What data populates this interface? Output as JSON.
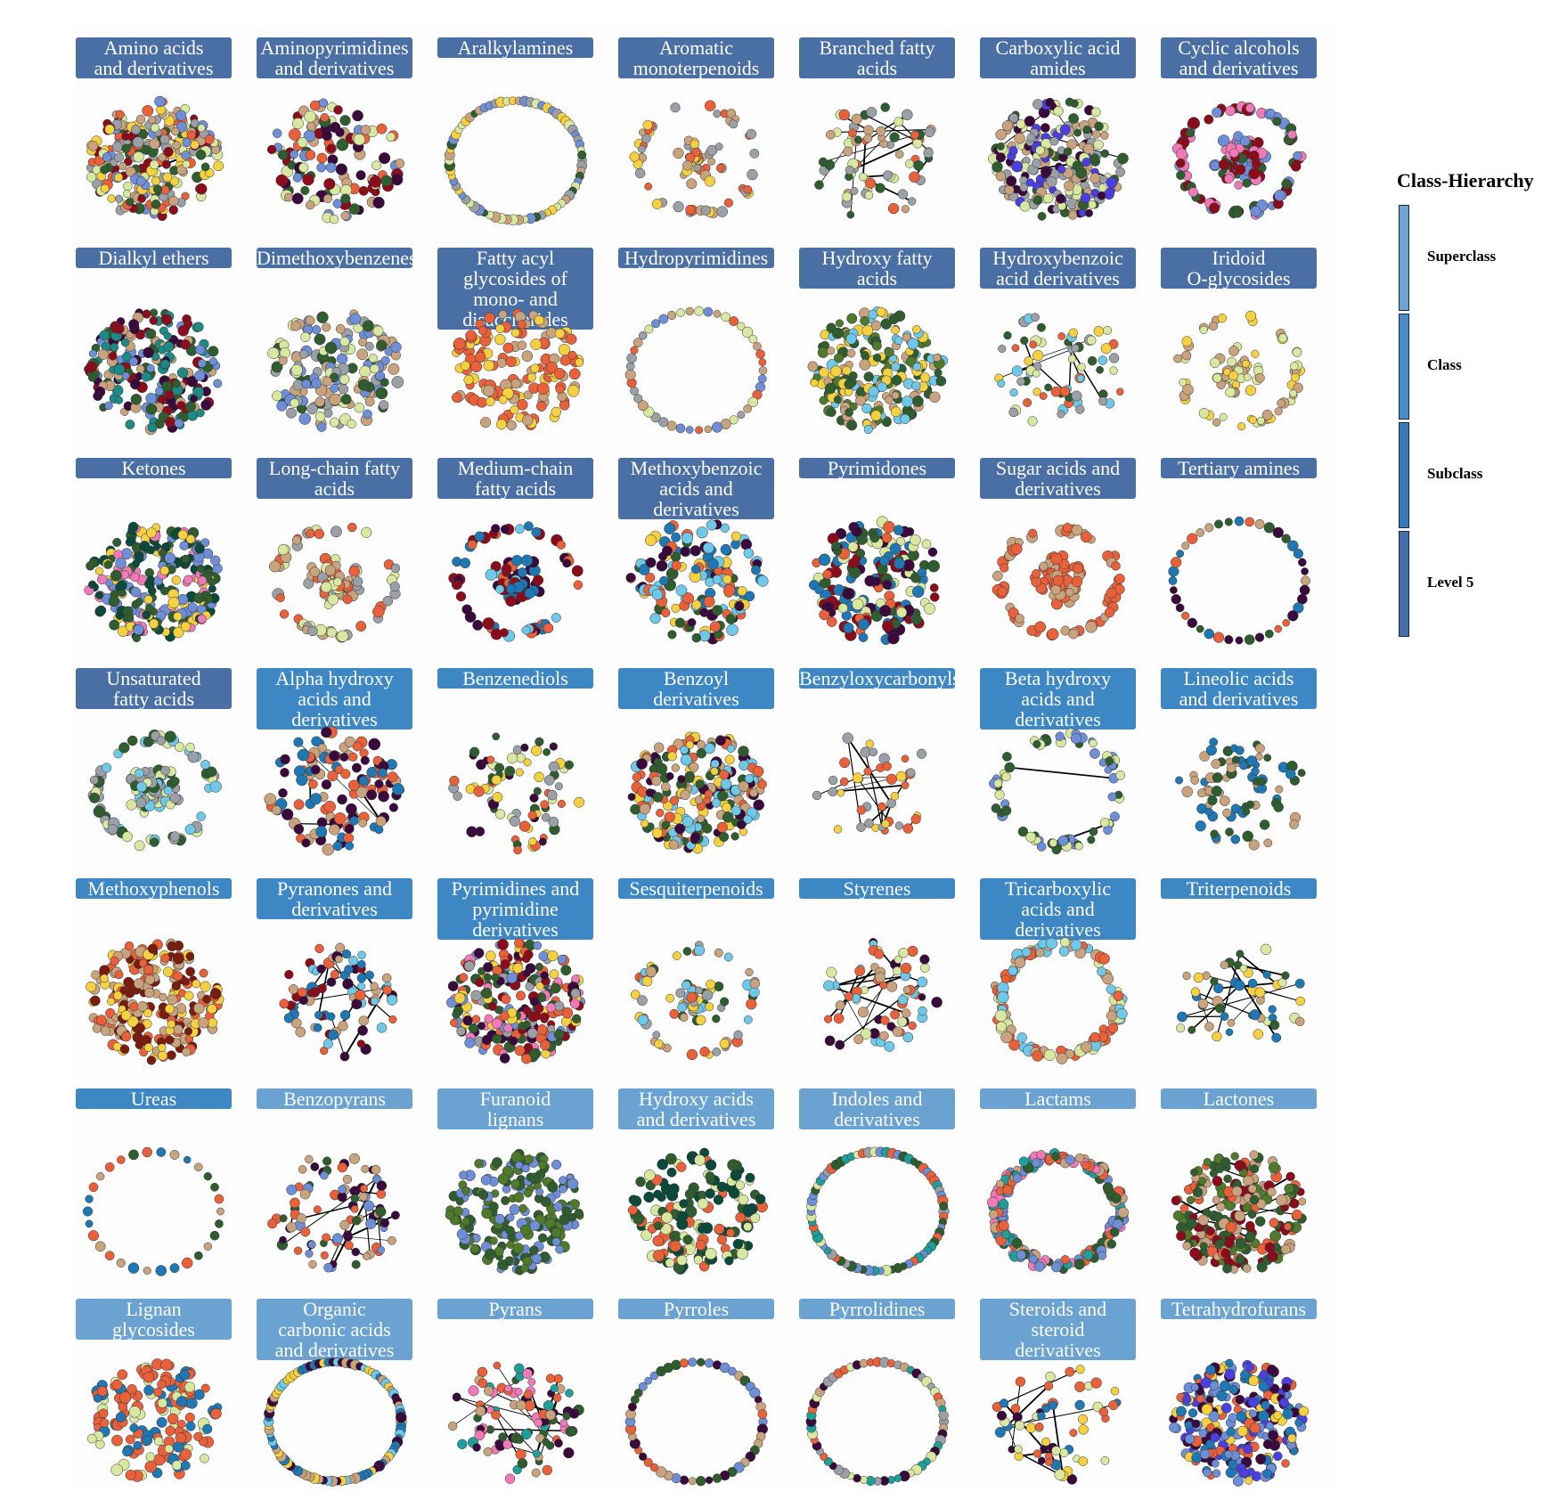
{
  "legend": {
    "title": "Class-Hierarchy",
    "levels": [
      {
        "label": "Superclass",
        "color": "#6fa3d0"
      },
      {
        "label": "Class",
        "color": "#4a8cc7"
      },
      {
        "label": "Subclass",
        "color": "#3a78b8"
      },
      {
        "label": "Level 5",
        "color": "#456fa8"
      }
    ]
  },
  "header_colors": {
    "row0": "#4a6fa5",
    "row3a": "#4a6fa5",
    "row3b": "#3d87c4",
    "row5a": "#3d87c4",
    "row5b": "#6aa2d2"
  },
  "panels": [
    {
      "title": [
        "Amino acids",
        "and derivatives"
      ],
      "layout": "disc",
      "palette": [
        "#e8613b",
        "#9aa0a6",
        "#f5d142",
        "#c9a27e",
        "#d9e8a0",
        "#2f5d2f",
        "#6e8fd8",
        "#8b0d1c"
      ],
      "nodes": 260,
      "edges": 2
    },
    {
      "title": [
        "Aminopyrimidines",
        "and derivatives"
      ],
      "layout": "disc",
      "palette": [
        "#2f5d2f",
        "#e8613b",
        "#8b0d1c",
        "#3b0a3d",
        "#c9a27e",
        "#6e8fd8",
        "#d9e8a0"
      ],
      "nodes": 120,
      "edges": 1
    },
    {
      "title": [
        "Aralkylamines"
      ],
      "layout": "ring",
      "palette": [
        "#6e8fd8",
        "#d9e8a0",
        "#2f5d2f",
        "#9aa0a6",
        "#c9a27e",
        "#f5d142"
      ],
      "nodes": 70,
      "edges": 0
    },
    {
      "title": [
        "Aromatic",
        "monoterpenoids"
      ],
      "layout": "cluster",
      "palette": [
        "#e8613b",
        "#9aa0a6",
        "#c9a27e",
        "#f5d142"
      ],
      "nodes": 80,
      "edges": 0
    },
    {
      "title": [
        "Branched fatty",
        "acids"
      ],
      "layout": "islands",
      "palette": [
        "#e8613b",
        "#2f5d2f",
        "#9aa0a6",
        "#c9a27e",
        "#d9e8a0"
      ],
      "nodes": 70,
      "edges": 14
    },
    {
      "title": [
        "Carboxylic acid",
        "amides"
      ],
      "layout": "disc",
      "palette": [
        "#4b3fe0",
        "#2f5d2f",
        "#9aa0a6",
        "#d9e8a0",
        "#c9a27e",
        "#3b0a3d"
      ],
      "nodes": 230,
      "edges": 5
    },
    {
      "title": [
        "Cyclic alcohols",
        "and derivatives"
      ],
      "layout": "cluster",
      "palette": [
        "#f07ab8",
        "#2f5d2f",
        "#8b0d1c",
        "#6e8fd8"
      ],
      "nodes": 180,
      "edges": 0
    },
    {
      "title": [
        "Dialkyl ethers"
      ],
      "layout": "disc",
      "palette": [
        "#1e8a86",
        "#6e8fd8",
        "#3b0a3d",
        "#8b0d1c",
        "#c9a27e",
        "#2f5d2f"
      ],
      "nodes": 230,
      "edges": 0
    },
    {
      "title": [
        "Dimethoxybenzenes"
      ],
      "layout": "disc",
      "palette": [
        "#2f5d2f",
        "#6e8fd8",
        "#d9e8a0",
        "#c9a27e",
        "#9aa0a6"
      ],
      "nodes": 170,
      "edges": 0
    },
    {
      "title": [
        "Fatty acyl",
        "glycosides of",
        "mono- and",
        "disaccharides"
      ],
      "layout": "disc",
      "palette": [
        "#e8613b",
        "#e8613b",
        "#f5d142",
        "#c9a27e"
      ],
      "nodes": 150,
      "edges": 0
    },
    {
      "title": [
        "Hydropyrimidines"
      ],
      "layout": "ring",
      "palette": [
        "#e8613b",
        "#c9a27e",
        "#6e8fd8",
        "#9aa0a6",
        "#d9e8a0"
      ],
      "nodes": 45,
      "edges": 0
    },
    {
      "title": [
        "Hydroxy fatty",
        "acids"
      ],
      "layout": "disc",
      "palette": [
        "#4f7a2c",
        "#2f5d2f",
        "#6fc8e8",
        "#c9a27e",
        "#f5d142"
      ],
      "nodes": 220,
      "edges": 0
    },
    {
      "title": [
        "Hydroxybenzoic",
        "acid derivatives"
      ],
      "layout": "islands",
      "palette": [
        "#6fc8e8",
        "#e8613b",
        "#9aa0a6",
        "#2f5d2f",
        "#d9e8a0",
        "#f5d142"
      ],
      "nodes": 70,
      "edges": 10
    },
    {
      "title": [
        "Iridoid",
        "O-glycosides"
      ],
      "layout": "cluster",
      "palette": [
        "#c9a27e",
        "#d9e8a0",
        "#f5d142"
      ],
      "nodes": 90,
      "edges": 0
    },
    {
      "title": [
        "Ketones"
      ],
      "layout": "disc",
      "palette": [
        "#0b4a3a",
        "#6e8fd8",
        "#f5d142",
        "#f07ab8",
        "#2f5d2f"
      ],
      "nodes": 260,
      "edges": 0
    },
    {
      "title": [
        "Long-chain fatty",
        "acids"
      ],
      "layout": "cluster",
      "palette": [
        "#9aa0a6",
        "#d9e8a0",
        "#e8613b",
        "#c9a27e"
      ],
      "nodes": 110,
      "edges": 0
    },
    {
      "title": [
        "Medium-chain",
        "fatty acids"
      ],
      "layout": "cluster",
      "palette": [
        "#1f78b4",
        "#8b0d1c",
        "#3b0a3d",
        "#e8613b",
        "#6fc8e8"
      ],
      "nodes": 110,
      "edges": 0
    },
    {
      "title": [
        "Methoxybenzoic",
        "acids and",
        "derivatives"
      ],
      "layout": "disc",
      "palette": [
        "#3b0a3d",
        "#1f78b4",
        "#2f5d2f",
        "#6fc8e8",
        "#f5d142",
        "#e8613b"
      ],
      "nodes": 150,
      "edges": 0
    },
    {
      "title": [
        "Pyrimidones"
      ],
      "layout": "disc",
      "palette": [
        "#8b0d1c",
        "#2f5d2f",
        "#e8613b",
        "#1f78b4",
        "#d9e8a0",
        "#3b0a3d"
      ],
      "nodes": 170,
      "edges": 0
    },
    {
      "title": [
        "Sugar acids and",
        "derivatives"
      ],
      "layout": "cluster",
      "palette": [
        "#e8613b",
        "#e8613b",
        "#c9a27e"
      ],
      "nodes": 130,
      "edges": 0
    },
    {
      "title": [
        "Tertiary amines"
      ],
      "layout": "ring",
      "palette": [
        "#1f78b4",
        "#c9a27e",
        "#2f5d2f",
        "#3b0a3d",
        "#e8613b"
      ],
      "nodes": 40,
      "edges": 0
    },
    {
      "title": [
        "Unsaturated",
        "fatty acids"
      ],
      "layout": "cluster",
      "palette": [
        "#6fc8e8",
        "#2f5d2f",
        "#d9e8a0",
        "#9aa0a6"
      ],
      "nodes": 150,
      "edges": 0
    },
    {
      "title": [
        "Alpha hydroxy",
        "acids and",
        "derivatives"
      ],
      "layout": "disc",
      "palette": [
        "#e8613b",
        "#c9a27e",
        "#1f78b4",
        "#3b0a3d"
      ],
      "nodes": 120,
      "edges": 4
    },
    {
      "title": [
        "Benzenediols"
      ],
      "layout": "islands",
      "palette": [
        "#e8613b",
        "#f5d142",
        "#9aa0a6",
        "#3b0a3d",
        "#d9e8a0",
        "#2f5d2f"
      ],
      "nodes": 80,
      "edges": 0
    },
    {
      "title": [
        "Benzoyl",
        "derivatives"
      ],
      "layout": "disc",
      "palette": [
        "#6fc8e8",
        "#2f5d2f",
        "#c9a27e",
        "#e8613b",
        "#3b0a3d",
        "#f5d142"
      ],
      "nodes": 230,
      "edges": 0
    },
    {
      "title": [
        "Benzyloxycarbonyls"
      ],
      "layout": "islands",
      "palette": [
        "#e8613b",
        "#9aa0a6",
        "#f5d142"
      ],
      "nodes": 40,
      "edges": 16
    },
    {
      "title": [
        "Beta hydroxy",
        "acids and",
        "derivatives"
      ],
      "layout": "ring2",
      "palette": [
        "#d9e8a0",
        "#2f5d2f",
        "#6e8fd8"
      ],
      "nodes": 80,
      "edges": 2
    },
    {
      "title": [
        "Lineolic acids",
        "and derivatives"
      ],
      "layout": "islands",
      "palette": [
        "#c9a27e",
        "#1f78b4",
        "#2f5d2f"
      ],
      "nodes": 80,
      "edges": 0
    },
    {
      "title": [
        "Methoxyphenols"
      ],
      "layout": "disc",
      "palette": [
        "#7a1d0f",
        "#c9a27e",
        "#e8613b",
        "#f5d142"
      ],
      "nodes": 230,
      "edges": 0
    },
    {
      "title": [
        "Pyranones and",
        "derivatives"
      ],
      "layout": "islands",
      "palette": [
        "#e8613b",
        "#8b0d1c",
        "#3b0a3d",
        "#c9a27e",
        "#1f78b4",
        "#6fc8e8"
      ],
      "nodes": 80,
      "edges": 16
    },
    {
      "title": [
        "Pyrimidines and",
        "pyrimidine",
        "derivatives"
      ],
      "layout": "disc",
      "palette": [
        "#2f5d2f",
        "#8b0d1c",
        "#6e8fd8",
        "#f5d142",
        "#e8613b",
        "#3b0a3d",
        "#f07ab8",
        "#9aa0a6"
      ],
      "nodes": 260,
      "edges": 0
    },
    {
      "title": [
        "Sesquiterpenoids"
      ],
      "layout": "cluster",
      "palette": [
        "#f5d142",
        "#e8613b",
        "#6fc8e8",
        "#9aa0a6",
        "#2f5d2f",
        "#c9a27e"
      ],
      "nodes": 90,
      "edges": 0
    },
    {
      "title": [
        "Styrenes"
      ],
      "layout": "islands",
      "palette": [
        "#3b0a3d",
        "#e8613b",
        "#d9e8a0",
        "#c9a27e",
        "#6fc8e8"
      ],
      "nodes": 70,
      "edges": 14
    },
    {
      "title": [
        "Tricarboxylic",
        "acids and",
        "derivatives"
      ],
      "layout": "ring2",
      "palette": [
        "#c9a27e",
        "#6fc8e8",
        "#d9e8a0",
        "#e8613b"
      ],
      "nodes": 120,
      "edges": 0
    },
    {
      "title": [
        "Triterpenoids"
      ],
      "layout": "islands",
      "palette": [
        "#1f78b4",
        "#d9e8a0",
        "#c9a27e",
        "#2f5d2f",
        "#f5d142"
      ],
      "nodes": 50,
      "edges": 16
    },
    {
      "title": [
        "Ureas"
      ],
      "layout": "ring",
      "palette": [
        "#e8613b",
        "#2f5d2f",
        "#1f78b4",
        "#c9a27e"
      ],
      "nodes": 30,
      "edges": 0
    },
    {
      "title": [
        "Benzopyrans"
      ],
      "layout": "islands",
      "palette": [
        "#c9a27e",
        "#3b0a3d",
        "#2f5d2f",
        "#e8613b",
        "#6e8fd8"
      ],
      "nodes": 90,
      "edges": 18
    },
    {
      "title": [
        "Furanoid",
        "lignans"
      ],
      "layout": "disc",
      "palette": [
        "#4f7a2c",
        "#6e8fd8",
        "#2f5d2f"
      ],
      "nodes": 200,
      "edges": 0
    },
    {
      "title": [
        "Hydroxy acids",
        "and derivatives"
      ],
      "layout": "disc",
      "palette": [
        "#0b4a3a",
        "#e8613b",
        "#2f5d2f",
        "#d9e8a0"
      ],
      "nodes": 150,
      "edges": 0
    },
    {
      "title": [
        "Indoles and",
        "derivatives"
      ],
      "layout": "ring",
      "palette": [
        "#e8613b",
        "#2f5d2f",
        "#1f9e9a",
        "#6e8fd8",
        "#9aa0a6",
        "#d9e8a0"
      ],
      "nodes": 70,
      "edges": 0
    },
    {
      "title": [
        "Lactams"
      ],
      "layout": "ring2",
      "palette": [
        "#e8613b",
        "#6e8fd8",
        "#2f5d2f",
        "#c9a27e",
        "#f07ab8",
        "#1f9e9a"
      ],
      "nodes": 220,
      "edges": 0
    },
    {
      "title": [
        "Lactones"
      ],
      "layout": "disc",
      "palette": [
        "#2f5d2f",
        "#4f7a2c",
        "#e8613b",
        "#8b0d1c",
        "#c9a27e"
      ],
      "nodes": 230,
      "edges": 10
    },
    {
      "title": [
        "Lignan",
        "glycosides"
      ],
      "layout": "disc",
      "palette": [
        "#e8613b",
        "#e8613b",
        "#1f78b4",
        "#d9e8a0"
      ],
      "nodes": 160,
      "edges": 0
    },
    {
      "title": [
        "Organic",
        "carbonic acids",
        "and derivatives"
      ],
      "layout": "ring",
      "palette": [
        "#1f78b4",
        "#3b0a3d",
        "#6fc8e8",
        "#f5d142",
        "#c9a27e"
      ],
      "nodes": 90,
      "edges": 0
    },
    {
      "title": [
        "Pyrans"
      ],
      "layout": "islands",
      "palette": [
        "#1f9e9a",
        "#3b0a3d",
        "#c9a27e",
        "#2f5d2f",
        "#e8613b",
        "#f07ab8"
      ],
      "nodes": 100,
      "edges": 16
    },
    {
      "title": [
        "Pyrroles"
      ],
      "layout": "ring",
      "palette": [
        "#2f5d2f",
        "#e8613b",
        "#6e8fd8",
        "#3b0a3d",
        "#c9a27e"
      ],
      "nodes": 50,
      "edges": 0
    },
    {
      "title": [
        "Pyrrolidines"
      ],
      "layout": "ring",
      "palette": [
        "#1f9e9a",
        "#e8613b",
        "#3b0a3d",
        "#9aa0a6",
        "#d9e8a0",
        "#c9a27e"
      ],
      "nodes": 60,
      "edges": 0
    },
    {
      "title": [
        "Steroids and",
        "steroid",
        "derivatives"
      ],
      "layout": "islands",
      "palette": [
        "#e8613b",
        "#1f78b4",
        "#d9e8a0",
        "#3b0a3d",
        "#f5d142"
      ],
      "nodes": 60,
      "edges": 12
    },
    {
      "title": [
        "Tetrahydrofurans"
      ],
      "layout": "disc",
      "palette": [
        "#4b3fe0",
        "#6e8fd8",
        "#3b0a3d",
        "#1f78b4",
        "#f5d142",
        "#e8613b"
      ],
      "nodes": 260,
      "edges": 0
    }
  ]
}
